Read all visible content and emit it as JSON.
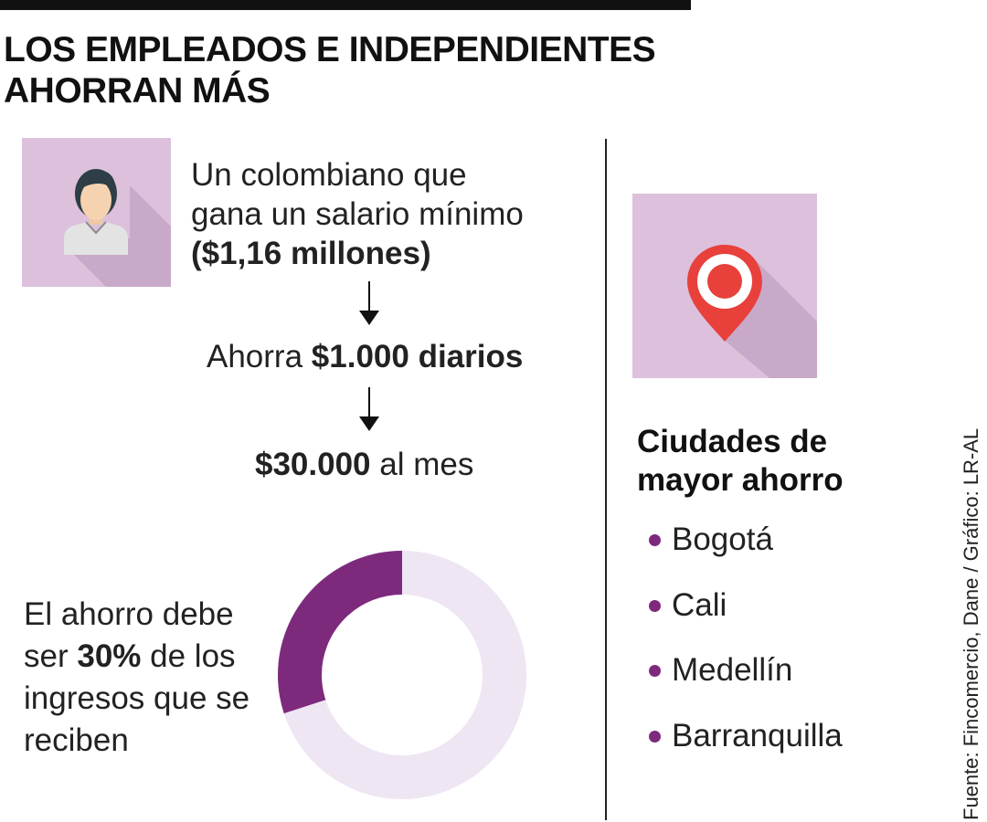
{
  "title": {
    "line1": "LOS EMPLEADOS E INDEPENDIENTES",
    "line2": "AHORRAN MÁS"
  },
  "salary": {
    "line1": "Un colombiano que",
    "line2": "gana un salario mínimo",
    "amount": "($1,16 millones)"
  },
  "daily": {
    "prefix": "Ahorra",
    "amount": "$1.000 diarios"
  },
  "monthly": {
    "amount": "$30.000",
    "suffix": "al mes"
  },
  "savings_share": {
    "text_1": "El ahorro debe",
    "text_2": "ser",
    "percent": "30%",
    "text_3": "de los",
    "text_4": "ingresos que se",
    "text_5": "reciben",
    "value": 30
  },
  "cities": {
    "title_line1": "Ciudades de",
    "title_line2": "mayor ahorro",
    "items": [
      "Bogotá",
      "Cali",
      "Medellín",
      "Barranquilla"
    ]
  },
  "source": "Fuente: Fincomercio, Dane / Gráfico: LR-AL",
  "colors": {
    "tile": "#dcc0dc",
    "accent": "#7d2a7d",
    "donut_track": "#efe6f3",
    "pin_red": "#e8403b"
  },
  "icons": {
    "person": "user-avatar-icon",
    "pin": "location-pin-icon",
    "arrow": "arrow-down-icon"
  }
}
